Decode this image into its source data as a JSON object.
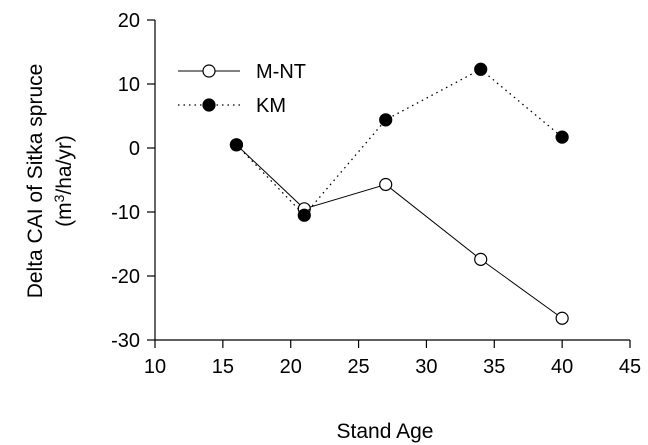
{
  "chart_data": {
    "type": "line",
    "title": "",
    "xlabel": "Stand Age",
    "ylabel_line1": "Delta CAI of Sitka spruce",
    "ylabel_line2_prefix": "(m",
    "ylabel_line2_sup": "3",
    "ylabel_line2_suffix": "/ha/yr)",
    "xlim": [
      10,
      45
    ],
    "ylim": [
      -30,
      20
    ],
    "xticks": [
      10,
      15,
      20,
      25,
      30,
      35,
      40,
      45
    ],
    "yticks": [
      -30,
      -20,
      -10,
      0,
      10,
      20
    ],
    "grid": false,
    "legend_position": "top-left",
    "series": [
      {
        "name": "M-NT",
        "marker": "open-circle",
        "line": "solid",
        "color": "#000000",
        "x": [
          16,
          21,
          27,
          34,
          40
        ],
        "y": [
          0.5,
          -9.5,
          -5.7,
          -17.4,
          -26.6
        ]
      },
      {
        "name": "KM",
        "marker": "filled-circle",
        "line": "dotted",
        "color": "#000000",
        "x": [
          16,
          21,
          27,
          34,
          40
        ],
        "y": [
          0.5,
          -10.5,
          4.4,
          12.3,
          1.7
        ]
      }
    ]
  }
}
